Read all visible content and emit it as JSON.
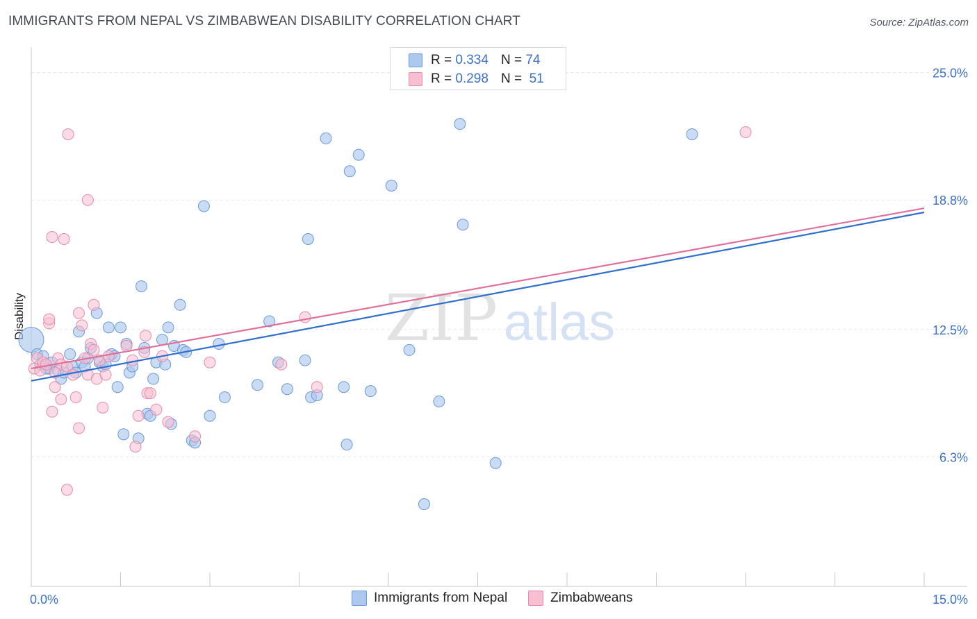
{
  "header": {
    "title": "IMMIGRANTS FROM NEPAL VS ZIMBABWEAN DISABILITY CORRELATION CHART",
    "source": "Source: ZipAtlas.com"
  },
  "watermark": {
    "zip": "ZIP",
    "atlas": "atlas"
  },
  "colors": {
    "blue_fill": "#adc8ee",
    "blue_stroke": "#6a9ad8",
    "blue_line": "#2f6fce",
    "pink_fill": "#f7c0d2",
    "pink_stroke": "#e88aa8",
    "pink_line": "#e0709a",
    "grid": "#e6e6e6",
    "axis": "#c8c8c8",
    "tick_text": "#3b72c6"
  },
  "legend": {
    "r_label": "R =",
    "n_label": "N =",
    "series": [
      {
        "r": "0.334",
        "n": "74"
      },
      {
        "r": "0.298",
        "n": "51"
      }
    ]
  },
  "chart_data": {
    "type": "scatter",
    "title": "IMMIGRANTS FROM NEPAL VS ZIMBABWEAN DISABILITY CORRELATION CHART",
    "xlabel": "",
    "ylabel": "Disability",
    "xlim": [
      0,
      15
    ],
    "ylim": [
      0,
      26
    ],
    "x_tick_labels": [
      "0.0%",
      "15.0%"
    ],
    "y_ticks": [
      6.3,
      12.5,
      18.8,
      25.0
    ],
    "y_tick_labels": [
      "6.3%",
      "12.5%",
      "18.8%",
      "25.0%"
    ],
    "legend_position": "top-center",
    "series": [
      {
        "name": "Immigrants from Nepal",
        "r": 0.334,
        "n": 74,
        "trend": {
          "x0": 0,
          "y0": 10.0,
          "x1": 15,
          "y1": 18.2
        },
        "points": [
          [
            0.0,
            12.0
          ],
          [
            0.1,
            11.3
          ],
          [
            0.15,
            10.8
          ],
          [
            0.2,
            11.2
          ],
          [
            0.3,
            10.6
          ],
          [
            0.35,
            10.9
          ],
          [
            0.45,
            10.5
          ],
          [
            0.5,
            10.1
          ],
          [
            0.55,
            10.4
          ],
          [
            0.65,
            11.3
          ],
          [
            0.7,
            10.7
          ],
          [
            0.75,
            10.4
          ],
          [
            0.8,
            12.4
          ],
          [
            0.85,
            10.9
          ],
          [
            0.9,
            10.7
          ],
          [
            0.95,
            11.1
          ],
          [
            1.1,
            13.3
          ],
          [
            1.15,
            10.9
          ],
          [
            1.2,
            10.7
          ],
          [
            1.3,
            12.6
          ],
          [
            1.35,
            11.3
          ],
          [
            1.4,
            11.2
          ],
          [
            1.45,
            9.7
          ],
          [
            1.5,
            12.6
          ],
          [
            1.55,
            7.4
          ],
          [
            1.6,
            11.8
          ],
          [
            1.65,
            10.4
          ],
          [
            1.7,
            10.7
          ],
          [
            1.8,
            7.2
          ],
          [
            1.85,
            14.6
          ],
          [
            1.9,
            11.6
          ],
          [
            1.95,
            8.4
          ],
          [
            2.0,
            8.3
          ],
          [
            2.05,
            10.1
          ],
          [
            2.1,
            10.9
          ],
          [
            2.2,
            12.0
          ],
          [
            2.25,
            10.8
          ],
          [
            2.3,
            12.6
          ],
          [
            2.35,
            7.9
          ],
          [
            2.4,
            11.7
          ],
          [
            2.5,
            13.7
          ],
          [
            2.55,
            11.5
          ],
          [
            2.6,
            11.4
          ],
          [
            2.7,
            7.1
          ],
          [
            2.75,
            7.0
          ],
          [
            2.9,
            18.5
          ],
          [
            3.0,
            8.3
          ],
          [
            3.15,
            11.8
          ],
          [
            3.25,
            9.2
          ],
          [
            3.8,
            9.8
          ],
          [
            4.0,
            12.9
          ],
          [
            4.15,
            10.9
          ],
          [
            4.3,
            9.6
          ],
          [
            4.6,
            11.0
          ],
          [
            4.65,
            16.9
          ],
          [
            4.7,
            9.2
          ],
          [
            4.8,
            9.3
          ],
          [
            4.95,
            21.8
          ],
          [
            5.25,
            9.7
          ],
          [
            5.3,
            6.9
          ],
          [
            5.35,
            20.2
          ],
          [
            5.5,
            21.0
          ],
          [
            5.7,
            9.5
          ],
          [
            6.05,
            19.5
          ],
          [
            6.35,
            11.5
          ],
          [
            6.6,
            4.0
          ],
          [
            6.85,
            9.0
          ],
          [
            7.2,
            22.5
          ],
          [
            7.25,
            17.6
          ],
          [
            7.8,
            6.0
          ],
          [
            11.1,
            22.0
          ],
          [
            1.0,
            11.6
          ],
          [
            1.25,
            10.8
          ],
          [
            0.25,
            10.6
          ]
        ]
      },
      {
        "name": "Zimbabweans",
        "r": 0.298,
        "n": 51,
        "trend": {
          "x0": 0,
          "y0": 10.6,
          "x1": 15,
          "y1": 18.4
        },
        "points": [
          [
            0.05,
            10.6
          ],
          [
            0.1,
            11.1
          ],
          [
            0.15,
            10.5
          ],
          [
            0.2,
            10.9
          ],
          [
            0.25,
            10.8
          ],
          [
            0.3,
            12.8
          ],
          [
            0.3,
            13.0
          ],
          [
            0.35,
            17.0
          ],
          [
            0.35,
            8.5
          ],
          [
            0.4,
            9.7
          ],
          [
            0.45,
            11.1
          ],
          [
            0.5,
            10.8
          ],
          [
            0.5,
            9.1
          ],
          [
            0.55,
            16.9
          ],
          [
            0.6,
            4.7
          ],
          [
            0.6,
            10.7
          ],
          [
            0.62,
            22.0
          ],
          [
            0.7,
            10.3
          ],
          [
            0.75,
            9.2
          ],
          [
            0.8,
            13.3
          ],
          [
            0.8,
            7.7
          ],
          [
            0.85,
            12.7
          ],
          [
            0.9,
            11.1
          ],
          [
            0.95,
            10.3
          ],
          [
            0.95,
            18.8
          ],
          [
            1.0,
            11.8
          ],
          [
            1.05,
            13.7
          ],
          [
            1.05,
            11.5
          ],
          [
            1.1,
            10.1
          ],
          [
            1.15,
            11.0
          ],
          [
            1.2,
            8.7
          ],
          [
            1.25,
            10.3
          ],
          [
            1.3,
            11.2
          ],
          [
            1.6,
            11.7
          ],
          [
            1.7,
            11.0
          ],
          [
            1.75,
            6.8
          ],
          [
            1.8,
            8.3
          ],
          [
            1.9,
            11.4
          ],
          [
            1.92,
            12.2
          ],
          [
            1.95,
            9.4
          ],
          [
            2.0,
            9.4
          ],
          [
            2.1,
            8.6
          ],
          [
            2.2,
            11.2
          ],
          [
            2.3,
            8.0
          ],
          [
            2.75,
            7.3
          ],
          [
            3.0,
            10.9
          ],
          [
            4.2,
            10.8
          ],
          [
            4.6,
            13.1
          ],
          [
            4.8,
            9.7
          ],
          [
            12.0,
            22.1
          ],
          [
            0.4,
            10.4
          ]
        ]
      }
    ]
  }
}
